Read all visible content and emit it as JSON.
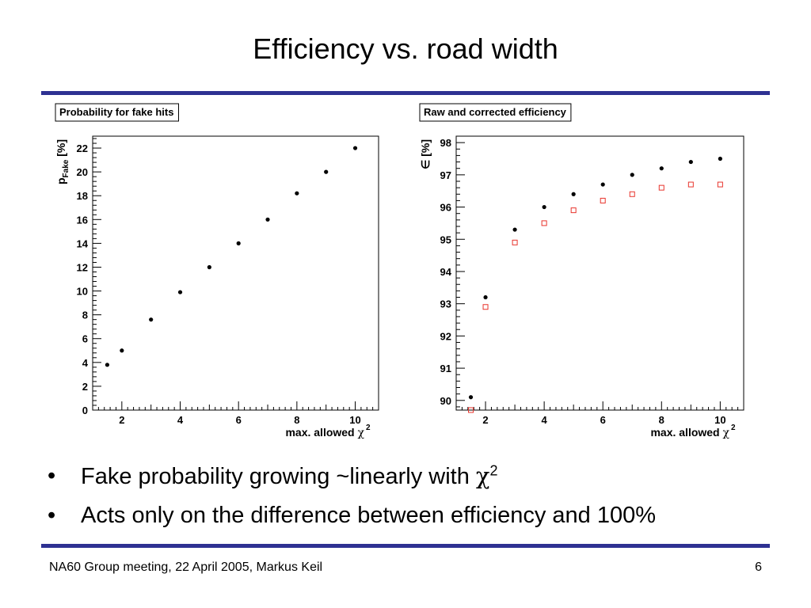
{
  "slide": {
    "title": "Efficiency vs. road width",
    "footer": "NA60 Group meeting, 22 April 2005, Markus Keil",
    "page_number": "6",
    "accent_color": "#2e3192"
  },
  "bullets": [
    {
      "marker": "•",
      "text": "Fake probability growing ~linearly with ",
      "symbol": "χ",
      "sup": "2"
    },
    {
      "marker": "•",
      "text": "Acts only on the difference between efficiency and 100%"
    }
  ],
  "chart_data": [
    {
      "type": "scatter",
      "title": "Probability for fake hits",
      "xlabel": "max. allowed",
      "xlabel_symbol": "χ",
      "xlabel_sup": "2",
      "ylabel": "p",
      "ylabel_sub": "Fake",
      "ylabel_unit": "[%]",
      "xlim": [
        1,
        10.8
      ],
      "ylim": [
        0,
        23
      ],
      "xticks": [
        2,
        4,
        6,
        8,
        10
      ],
      "yticks": [
        0,
        2,
        4,
        6,
        8,
        10,
        12,
        14,
        16,
        18,
        20,
        22
      ],
      "grid": false,
      "series": [
        {
          "marker": "filled-circle",
          "color": "#000000",
          "x": [
            1.5,
            2,
            3,
            4,
            5,
            6,
            7,
            8,
            9,
            10
          ],
          "y": [
            3.8,
            5.0,
            7.6,
            9.9,
            12.0,
            14.0,
            16.0,
            18.2,
            20.0,
            22.0
          ]
        }
      ]
    },
    {
      "type": "scatter",
      "title": "Raw and corrected efficiency",
      "xlabel": "max. allowed",
      "xlabel_symbol": "χ",
      "xlabel_sup": "2",
      "ylabel": "∈",
      "ylabel_unit": "[%]",
      "xlim": [
        1,
        10.8
      ],
      "ylim": [
        89.7,
        98.2
      ],
      "xticks": [
        2,
        4,
        6,
        8,
        10
      ],
      "yticks": [
        90,
        91,
        92,
        93,
        94,
        95,
        96,
        97,
        98
      ],
      "grid": false,
      "series": [
        {
          "marker": "filled-circle",
          "color": "#000000",
          "x": [
            1.5,
            2,
            3,
            4,
            5,
            6,
            7,
            8,
            9,
            10
          ],
          "y": [
            90.1,
            93.2,
            95.3,
            96.0,
            96.4,
            96.7,
            97.0,
            97.2,
            97.4,
            97.5
          ]
        },
        {
          "marker": "open-square",
          "color": "#e8342c",
          "x": [
            1.5,
            2,
            3,
            4,
            5,
            6,
            7,
            8,
            9,
            10
          ],
          "y": [
            89.7,
            92.9,
            94.9,
            95.5,
            95.9,
            96.2,
            96.4,
            96.6,
            96.7,
            96.7
          ]
        }
      ]
    }
  ]
}
